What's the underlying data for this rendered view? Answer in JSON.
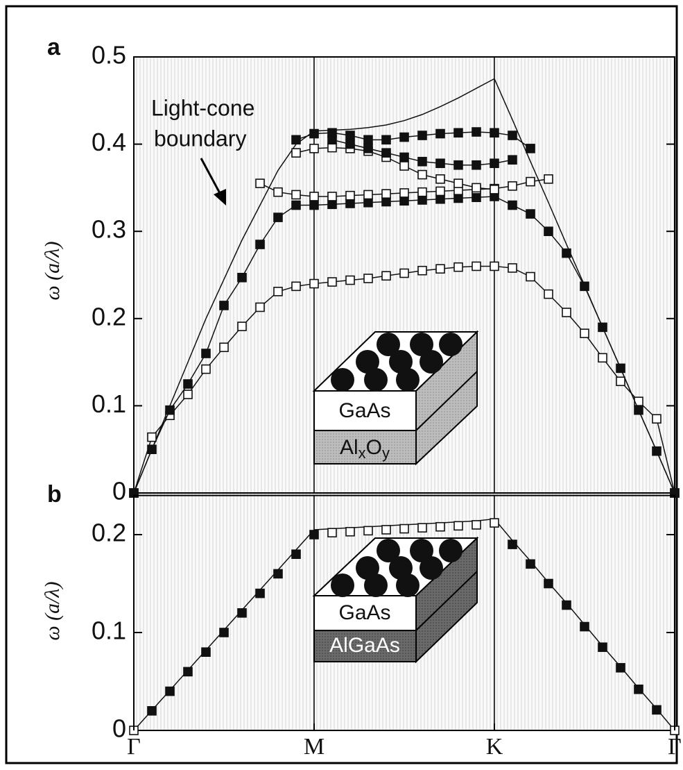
{
  "chart_data": [
    {
      "type": "line",
      "panel_label": "a",
      "ylabel": "ω (a/λ)",
      "annotation": [
        "Light-cone",
        "boundary"
      ],
      "inset": {
        "top_layer": "GaAs",
        "bottom_layer": [
          "Al",
          "x",
          "O",
          "y"
        ]
      },
      "x": [
        0,
        0.1,
        0.2,
        0.3,
        0.4,
        0.5,
        0.6,
        0.7,
        0.8,
        0.9,
        1.0,
        1.1,
        1.2,
        1.3,
        1.4,
        1.5,
        1.6,
        1.7,
        1.8,
        1.9,
        2.0,
        2.1,
        2.2,
        2.3,
        2.4,
        2.5,
        2.6,
        2.7,
        2.8,
        2.9,
        3.0
      ],
      "xlim": [
        0,
        3
      ],
      "ylim": [
        0,
        0.5
      ],
      "yticks": [
        0,
        0.1,
        0.2,
        0.3,
        0.4,
        0.5
      ],
      "series": [
        {
          "color": "#111111",
          "marker": "none",
          "line": true,
          "values": [
            0,
            0.05,
            0.1,
            0.15,
            0.2,
            0.245,
            0.29,
            0.33,
            0.37,
            0.4,
            0.415,
            0.416,
            0.417,
            0.419,
            0.422,
            0.427,
            0.434,
            0.443,
            0.453,
            0.464,
            0.475,
            0.428,
            0.38,
            0.333,
            0.285,
            0.238,
            0.19,
            0.143,
            0.095,
            0.048,
            0
          ]
        },
        {
          "color": "#111111",
          "marker": "open",
          "line": true,
          "values": [
            0,
            0.064,
            0.089,
            0.113,
            0.142,
            0.167,
            0.191,
            0.213,
            0.231,
            0.237,
            0.24,
            0.242,
            0.244,
            0.246,
            0.249,
            0.252,
            0.255,
            0.257,
            0.259,
            0.26,
            0.26,
            0.258,
            0.248,
            0.228,
            0.207,
            0.183,
            0.155,
            0.128,
            0.105,
            0.085,
            0
          ]
        },
        {
          "color": "#111111",
          "marker": "filled",
          "line": true,
          "values": [
            0,
            0.05,
            0.095,
            0.125,
            0.16,
            0.215,
            0.247,
            0.285,
            0.316,
            0.33,
            0.33,
            0.331,
            0.332,
            0.333,
            0.334,
            0.335,
            0.336,
            0.337,
            0.338,
            0.339,
            0.34,
            0.33,
            0.32,
            0.3,
            0.275,
            0.237,
            0.19,
            0.143,
            0.095,
            0.048,
            0
          ]
        },
        {
          "color": "#111111",
          "marker": "open",
          "line": true,
          "values": [
            null,
            null,
            null,
            null,
            null,
            null,
            null,
            0.355,
            0.345,
            0.342,
            0.34,
            0.34,
            0.341,
            0.342,
            0.343,
            0.344,
            0.345,
            0.346,
            0.347,
            0.348,
            0.349,
            0.352,
            0.357,
            0.36,
            null,
            null,
            null,
            null,
            null,
            null,
            null
          ]
        },
        {
          "color": "#111111",
          "marker": "open",
          "line": true,
          "values": [
            null,
            null,
            null,
            null,
            null,
            null,
            null,
            null,
            null,
            0.39,
            0.395,
            0.396,
            0.395,
            0.392,
            0.385,
            0.375,
            0.365,
            0.36,
            0.355,
            0.35,
            0.348,
            null,
            null,
            null,
            null,
            null,
            null,
            null,
            null,
            null,
            null
          ]
        },
        {
          "color": "#111111",
          "marker": "filled",
          "line": true,
          "values": [
            null,
            null,
            null,
            null,
            null,
            null,
            null,
            null,
            null,
            0.405,
            0.412,
            0.413,
            0.41,
            0.405,
            0.405,
            0.408,
            0.41,
            0.412,
            0.413,
            0.414,
            0.413,
            0.41,
            0.395,
            null,
            null,
            null,
            null,
            null,
            null,
            null,
            null
          ]
        },
        {
          "color": "#111111",
          "marker": "filled",
          "line": true,
          "values": [
            null,
            null,
            null,
            null,
            null,
            null,
            null,
            null,
            null,
            null,
            null,
            0.405,
            0.4,
            0.395,
            0.39,
            0.385,
            0.38,
            0.378,
            0.376,
            0.376,
            0.378,
            0.382,
            null,
            null,
            null,
            null,
            null,
            null,
            null,
            null,
            null
          ]
        }
      ]
    },
    {
      "type": "line",
      "panel_label": "b",
      "ylabel": "ω (a/λ)",
      "inset": {
        "top_layer": "GaAs",
        "bottom_layer": [
          "AlGaAs"
        ]
      },
      "x": [
        0,
        0.1,
        0.2,
        0.3,
        0.4,
        0.5,
        0.6,
        0.7,
        0.8,
        0.9,
        1.0,
        1.1,
        1.2,
        1.3,
        1.4,
        1.5,
        1.6,
        1.7,
        1.8,
        1.9,
        2.0,
        2.1,
        2.2,
        2.3,
        2.4,
        2.5,
        2.6,
        2.7,
        2.8,
        2.9,
        3.0
      ],
      "xlim": [
        0,
        3
      ],
      "ylim": [
        0,
        0.24
      ],
      "yticks": [
        0,
        0.1,
        0.2
      ],
      "xticks": [
        {
          "value": 0,
          "label": "Γ"
        },
        {
          "value": 1,
          "label": "M"
        },
        {
          "value": 2,
          "label": "K"
        },
        {
          "value": 3,
          "label": "Γ"
        }
      ],
      "series": [
        {
          "color": "#111111",
          "marker": "none",
          "line": true,
          "values": [
            0,
            0.0205,
            0.041,
            0.0615,
            0.082,
            0.1025,
            0.123,
            0.1435,
            0.164,
            0.1845,
            0.205,
            0.206,
            0.207,
            0.208,
            0.209,
            0.21,
            0.211,
            0.212,
            0.213,
            0.214,
            0.216,
            0.194,
            0.173,
            0.151,
            0.13,
            0.108,
            0.086,
            0.065,
            0.043,
            0.022,
            0
          ]
        },
        {
          "color": "#111111",
          "marker": "filled",
          "line": false,
          "values": [
            null,
            0.02,
            0.04,
            0.06,
            0.08,
            0.1,
            0.12,
            0.14,
            0.16,
            0.18,
            0.2,
            null,
            null,
            null,
            null,
            null,
            null,
            null,
            null,
            null,
            null,
            0.19,
            0.17,
            0.15,
            0.128,
            0.106,
            0.085,
            0.064,
            0.042,
            0.021,
            null
          ]
        },
        {
          "color": "#111111",
          "marker": "open",
          "line": false,
          "values": [
            0,
            null,
            null,
            null,
            null,
            null,
            null,
            null,
            null,
            null,
            null,
            0.202,
            0.203,
            0.204,
            0.205,
            0.206,
            0.207,
            0.208,
            0.209,
            0.21,
            0.212,
            null,
            null,
            null,
            null,
            null,
            null,
            null,
            null,
            null,
            0
          ]
        }
      ]
    }
  ]
}
